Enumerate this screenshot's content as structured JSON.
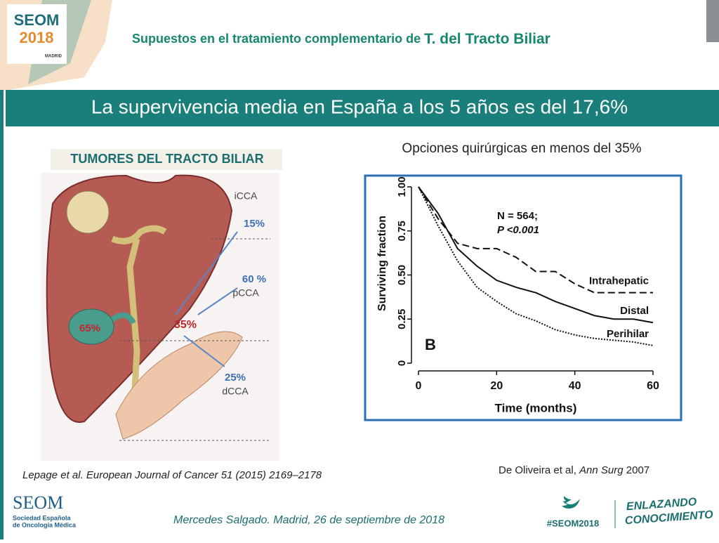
{
  "header": {
    "logo": "SEOM",
    "logo_year": "2018",
    "logo_city": "MADRID",
    "title_prefix": "Supuestos en el tratamiento complementario de ",
    "title_emph": "T. del Tracto Biliar"
  },
  "banner": "La supervivencia media en España a los 5 años es del 17,6%",
  "left": {
    "heading": "TUMORES DEL TRACTO BILIAR",
    "labels": {
      "icca": "iCCA",
      "icca_pct": "15%",
      "pcca_pct": "60 %",
      "pcca": "pCCA",
      "center_pct": "35%",
      "gallbladder_pct": "65%",
      "dcca_pct": "25%",
      "dcca": "dCCA"
    }
  },
  "right": {
    "heading": "Opciones quirúrgicas en menos del 35%"
  },
  "chart_data": {
    "type": "line",
    "panel_label": "B",
    "annotation_n": "N = 564;",
    "annotation_p": "P <0.001",
    "xlabel": "Time (months)",
    "ylabel": "Surviving fraction",
    "x": [
      0,
      5,
      10,
      15,
      20,
      25,
      30,
      35,
      40,
      45,
      50,
      55,
      60
    ],
    "series": [
      {
        "name": "Intrahepatic",
        "color": "#111111",
        "style": "dashed",
        "values": [
          1.0,
          0.82,
          0.68,
          0.65,
          0.65,
          0.6,
          0.52,
          0.52,
          0.45,
          0.4,
          0.4,
          0.4,
          0.4
        ]
      },
      {
        "name": "Distal",
        "color": "#111111",
        "style": "solid",
        "values": [
          1.0,
          0.85,
          0.65,
          0.55,
          0.47,
          0.43,
          0.4,
          0.35,
          0.31,
          0.27,
          0.25,
          0.25,
          0.23
        ]
      },
      {
        "name": "Perihilar",
        "color": "#111111",
        "style": "dotted",
        "values": [
          1.0,
          0.78,
          0.58,
          0.43,
          0.35,
          0.28,
          0.24,
          0.19,
          0.16,
          0.14,
          0.13,
          0.12,
          0.1
        ]
      }
    ],
    "xlim": [
      0,
      60
    ],
    "ylim": [
      0,
      1
    ],
    "xticks": [
      0,
      20,
      40,
      60
    ],
    "yticks": [
      0,
      0.25,
      {
        "value": 0.5,
        "label": "0.50"
      },
      0.75,
      {
        "value": 1,
        "label": "1.00"
      }
    ]
  },
  "citations": {
    "left": "Lepage et al.  European Journal of Cancer 51 (2015) 2169–2178",
    "right_authors": "De Oliveira et al, ",
    "right_journal": "Ann Surg",
    "right_year": " 2007"
  },
  "footer": {
    "org": "SEOM",
    "org_line1": "Sociedad Española",
    "org_line2": "de Oncología Médica",
    "speaker": "Mercedes Salgado. Madrid, 26 de septiembre de 2018",
    "hashtag": "#SEOM2018",
    "slogan1": "ENLAZANDO",
    "slogan2": "CONOCIMIENTO"
  }
}
